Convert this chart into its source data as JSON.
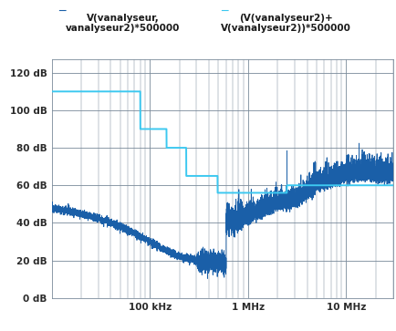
{
  "title_left": "V(vanalyseur,\nvanalyseur2)*500000",
  "title_right": "(V(vanalyseur2)+\nV(vanalyseur2))*500000",
  "ylabel_ticks": [
    "0 dB",
    "20 dB",
    "40 dB",
    "60 dB",
    "80 dB",
    "100 dB",
    "120 dB"
  ],
  "ytick_vals": [
    0,
    20,
    40,
    60,
    80,
    100,
    120
  ],
  "ylim": [
    0,
    127
  ],
  "xlim_log": [
    10000,
    30000000
  ],
  "xtick_vals": [
    100000,
    1000000,
    10000000
  ],
  "xtick_labels": [
    "100 kHz",
    "1 MHz",
    "10 MHz"
  ],
  "background_color": "#ffffff",
  "grid_color": "#7a8a9a",
  "curve1_color": "#1a5fa8",
  "curve2_color": "#3cc8f0",
  "text_color": "#2a2a2a",
  "title_color": "#1a1a1a"
}
